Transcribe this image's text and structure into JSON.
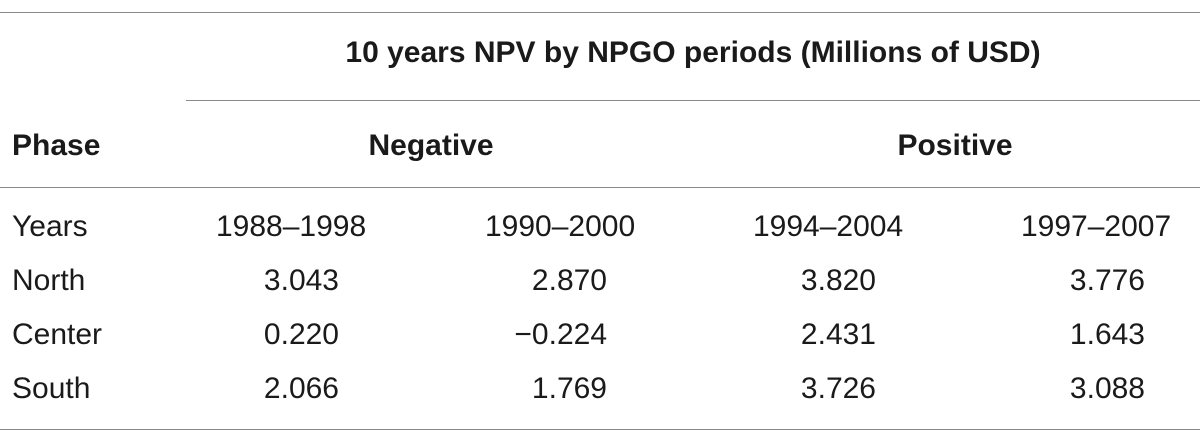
{
  "table": {
    "spanning_header": "10 years NPV by NPGO periods (Millions of USD)",
    "phase_header": "Phase",
    "groups": [
      "Negative",
      "Positive"
    ],
    "rows": [
      {
        "label": "Years",
        "values": [
          "1988–1998",
          "1990–2000",
          "1994–2004",
          "1997–2007"
        ]
      },
      {
        "label": "North",
        "values": [
          "3.043",
          "2.870",
          "3.820",
          "3.776"
        ]
      },
      {
        "label": "Center",
        "values": [
          "0.220",
          "−0.224",
          "2.431",
          "1.643"
        ]
      },
      {
        "label": "South",
        "values": [
          "2.066",
          "1.769",
          "3.726",
          "3.088"
        ]
      }
    ]
  }
}
